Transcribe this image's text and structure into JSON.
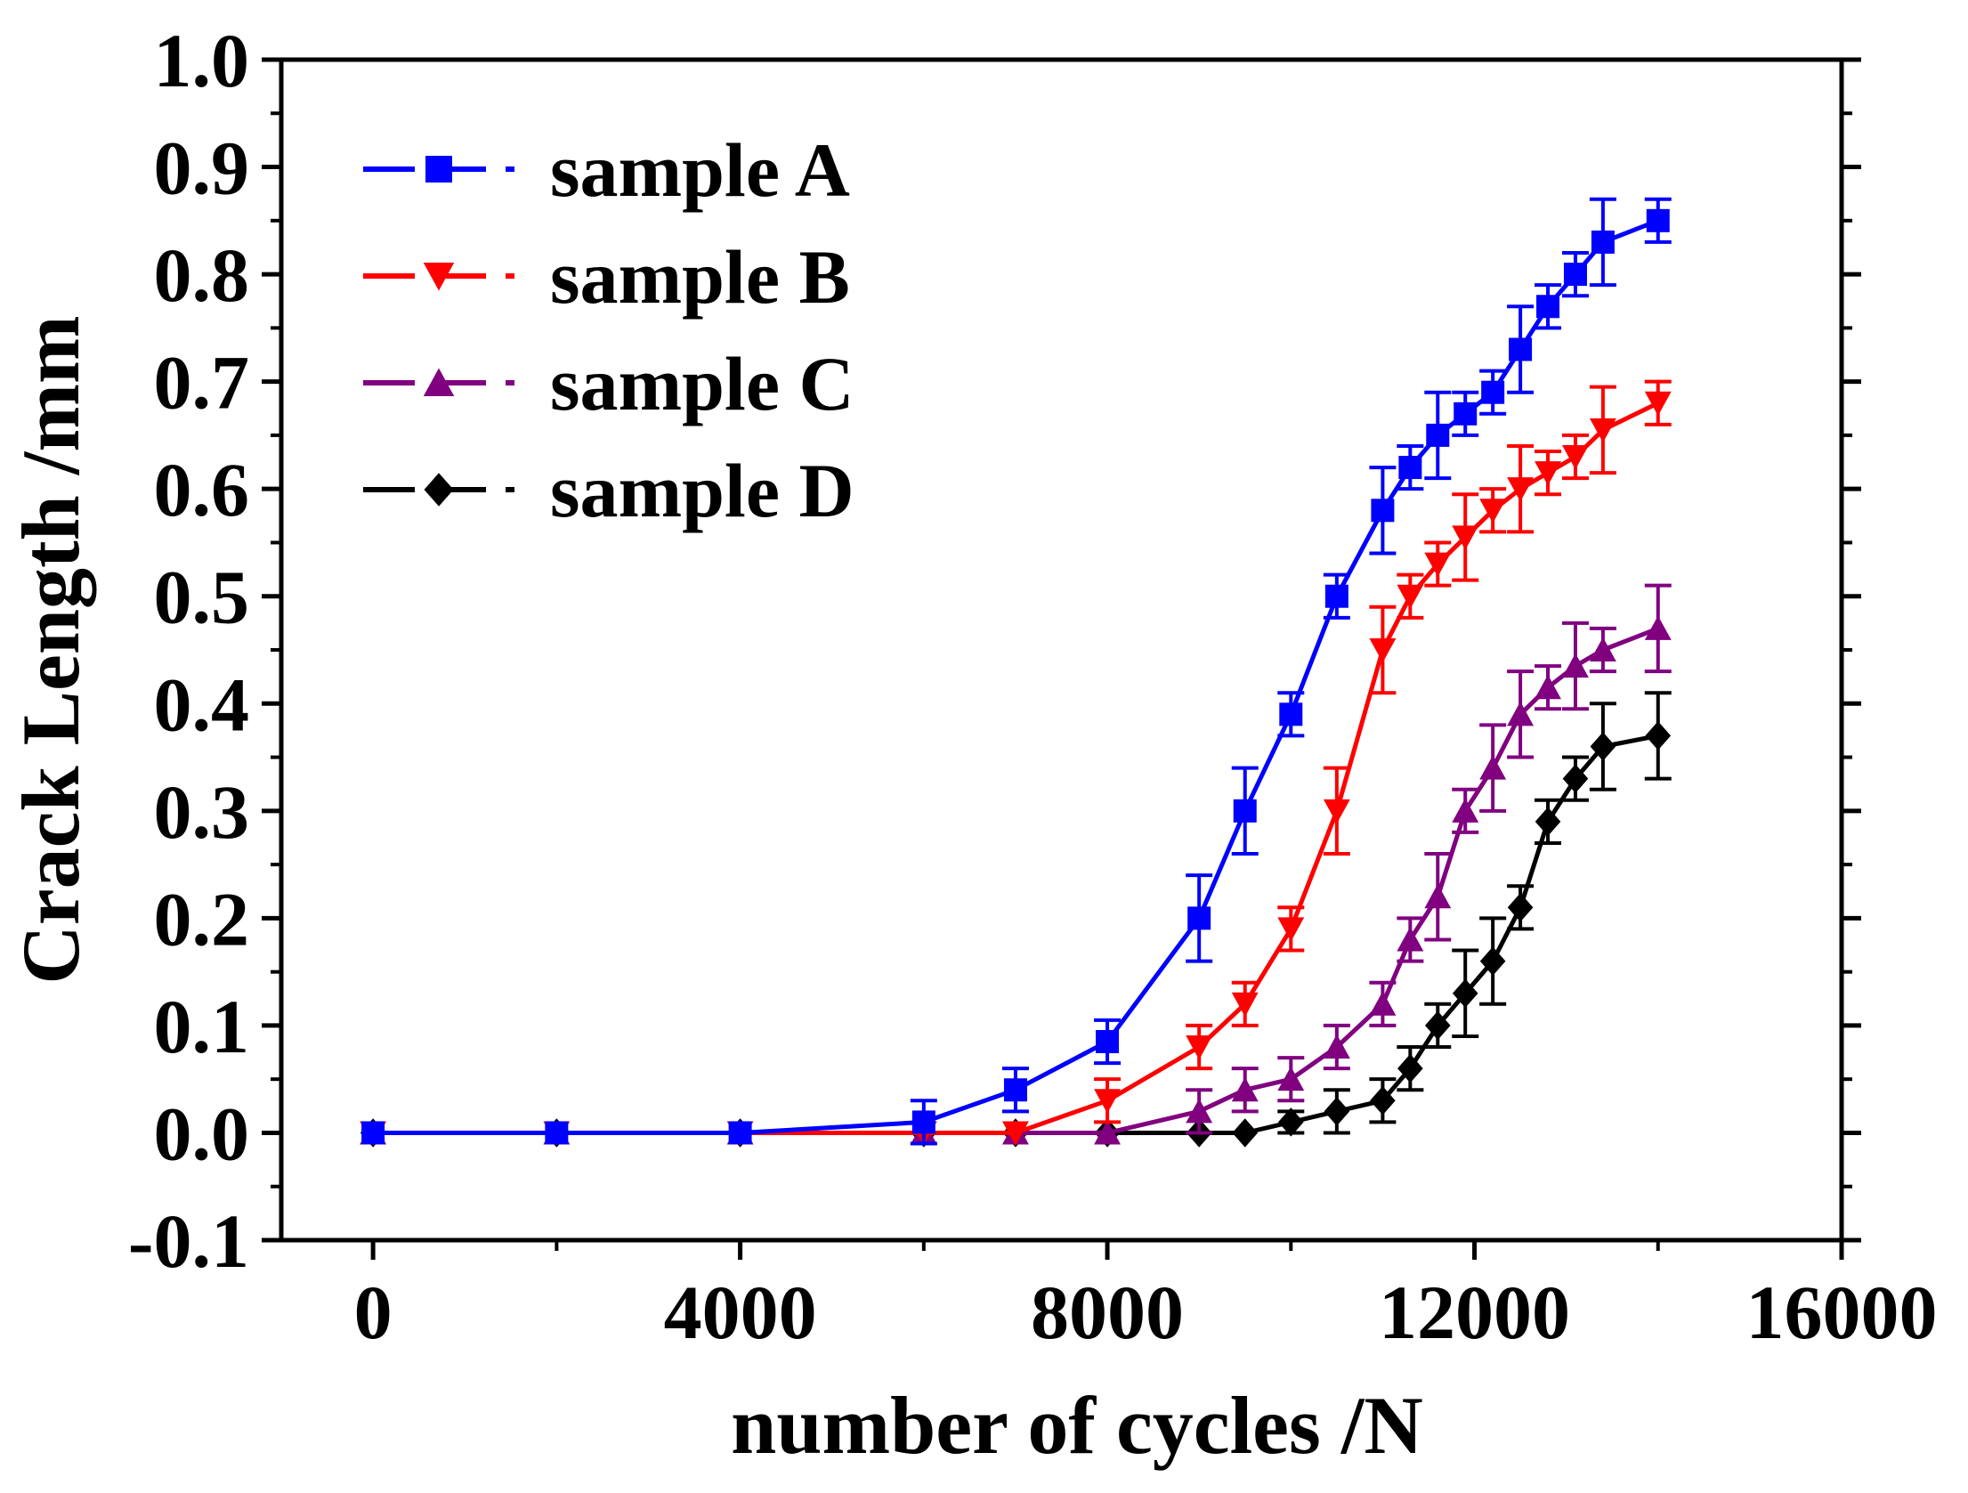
{
  "chart_data": {
    "type": "line",
    "title": "",
    "xlabel": "number of cycles /N",
    "ylabel": "Crack Length /mm",
    "xlim": [
      -1000,
      16000
    ],
    "ylim": [
      -0.1,
      1.0
    ],
    "xticks": [
      0,
      4000,
      8000,
      12000,
      16000
    ],
    "xtick_labels": [
      "0",
      "4000",
      "8000",
      "12000",
      "16000"
    ],
    "yticks": [
      -0.1,
      0.0,
      0.1,
      0.2,
      0.3,
      0.4,
      0.5,
      0.6,
      0.7,
      0.8,
      0.9,
      1.0
    ],
    "ytick_labels": [
      "-0.1",
      "0.0",
      "0.1",
      "0.2",
      "0.3",
      "0.4",
      "0.5",
      "0.6",
      "0.7",
      "0.8",
      "0.9",
      "1.0"
    ],
    "grid": false,
    "legend_position": "top-left",
    "series": [
      {
        "name": "sample A",
        "color": "#0000ff",
        "marker": "square",
        "x": [
          0,
          2000,
          4000,
          6000,
          7000,
          8000,
          9000,
          9500,
          10000,
          10500,
          11000,
          11300,
          11600,
          11900,
          12200,
          12500,
          12800,
          13100,
          13400,
          14000
        ],
        "y": [
          0,
          0,
          0,
          0.01,
          0.04,
          0.085,
          0.2,
          0.3,
          0.39,
          0.5,
          0.58,
          0.62,
          0.65,
          0.67,
          0.69,
          0.73,
          0.77,
          0.8,
          0.83,
          0.85
        ],
        "err": [
          0,
          0,
          0,
          0.02,
          0.02,
          0.02,
          0.04,
          0.04,
          0.02,
          0.02,
          0.04,
          0.02,
          0.04,
          0.02,
          0.02,
          0.04,
          0.02,
          0.02,
          0.04,
          0.02
        ]
      },
      {
        "name": "sample B",
        "color": "#ff0000",
        "marker": "triangle-down",
        "x": [
          0,
          2000,
          4000,
          6000,
          7000,
          8000,
          9000,
          9500,
          10000,
          10500,
          11000,
          11300,
          11600,
          11900,
          12200,
          12500,
          12800,
          13100,
          13400,
          14000
        ],
        "y": [
          0,
          0,
          0,
          0,
          0,
          0.03,
          0.08,
          0.12,
          0.19,
          0.3,
          0.45,
          0.5,
          0.53,
          0.555,
          0.58,
          0.6,
          0.615,
          0.63,
          0.655,
          0.68
        ],
        "err": [
          0,
          0,
          0,
          0,
          0,
          0.02,
          0.02,
          0.02,
          0.02,
          0.04,
          0.04,
          0.02,
          0.02,
          0.04,
          0.02,
          0.04,
          0.02,
          0.02,
          0.04,
          0.02
        ]
      },
      {
        "name": "sample C",
        "color": "#800080",
        "marker": "triangle-up",
        "x": [
          0,
          2000,
          4000,
          6000,
          7000,
          8000,
          9000,
          9500,
          10000,
          10500,
          11000,
          11300,
          11600,
          11900,
          12200,
          12500,
          12800,
          13100,
          13400,
          14000
        ],
        "y": [
          0,
          0,
          0,
          0,
          0,
          0,
          0.02,
          0.04,
          0.05,
          0.08,
          0.12,
          0.18,
          0.22,
          0.3,
          0.34,
          0.39,
          0.415,
          0.435,
          0.45,
          0.47
        ],
        "err": [
          0,
          0,
          0,
          0,
          0,
          0,
          0.02,
          0.02,
          0.02,
          0.02,
          0.02,
          0.02,
          0.04,
          0.02,
          0.04,
          0.04,
          0.02,
          0.04,
          0.02,
          0.04
        ]
      },
      {
        "name": "sample D",
        "color": "#000000",
        "marker": "diamond",
        "x": [
          0,
          2000,
          4000,
          6000,
          7000,
          8000,
          9000,
          9500,
          10000,
          10500,
          11000,
          11300,
          11600,
          11900,
          12200,
          12500,
          12800,
          13100,
          13400,
          14000
        ],
        "y": [
          0,
          0,
          0,
          0,
          0,
          0,
          0,
          0,
          0.01,
          0.02,
          0.03,
          0.06,
          0.1,
          0.13,
          0.16,
          0.21,
          0.29,
          0.33,
          0.36,
          0.37
        ],
        "err": [
          0,
          0,
          0,
          0,
          0,
          0,
          0,
          0,
          0.01,
          0.02,
          0.02,
          0.02,
          0.02,
          0.04,
          0.04,
          0.02,
          0.02,
          0.02,
          0.04,
          0.04
        ]
      }
    ]
  }
}
